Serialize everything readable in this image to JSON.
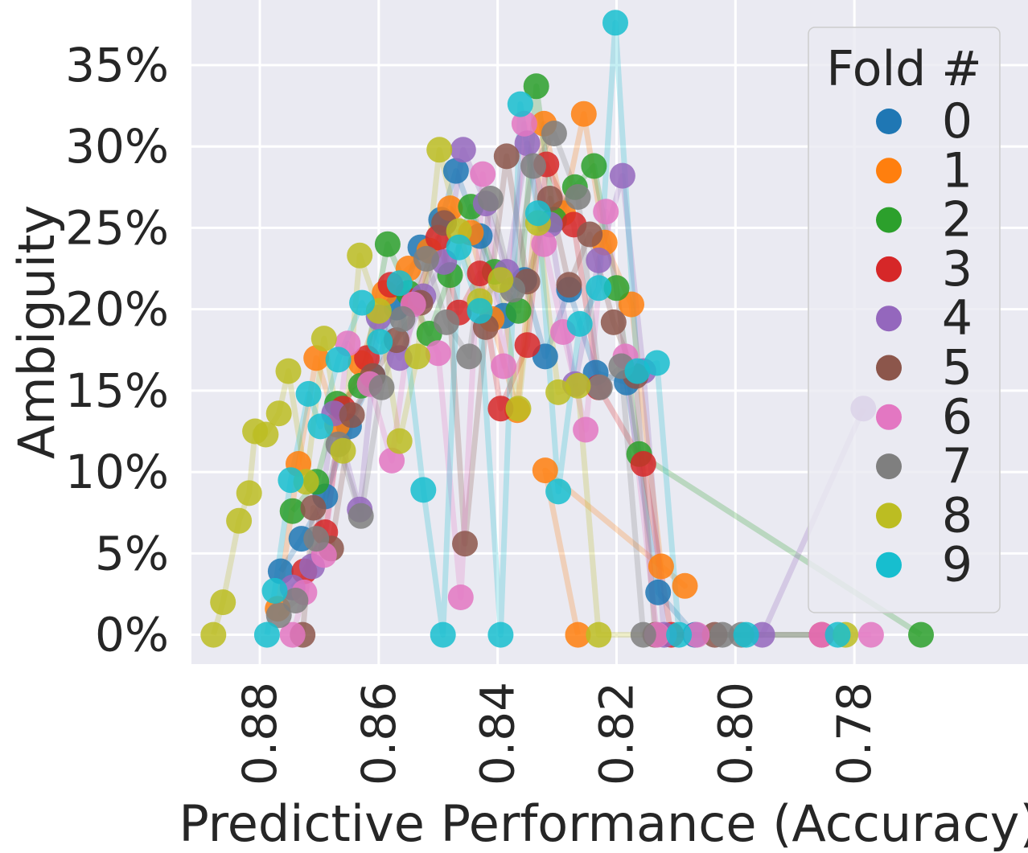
{
  "chart_data": {
    "type": "scatter",
    "title": "",
    "xlabel": "Predictive Performance (Accuracy)",
    "ylabel": "Ambiguity",
    "x_inverted": true,
    "xlim": [
      0.8915,
      0.7508
    ],
    "ylim": [
      -1.8,
      39
    ],
    "xticks": [
      0.88,
      0.86,
      0.84,
      0.82,
      0.8,
      0.78
    ],
    "xtick_labels": [
      "0.88",
      "0.86",
      "0.84",
      "0.82",
      "0.80",
      "0.78"
    ],
    "yticks": [
      0,
      5,
      10,
      15,
      20,
      25,
      30,
      35
    ],
    "ytick_labels": [
      "0%",
      "5%",
      "10%",
      "15%",
      "20%",
      "25%",
      "30%",
      "35%"
    ],
    "grid": true,
    "background": "#eaeaf2",
    "legend": {
      "title": "Fold #",
      "placement": "top-right"
    },
    "series": [
      {
        "name": "0",
        "color": "#1f77b4",
        "points": [
          [
            0.8765,
            3.9
          ],
          [
            0.873,
            5.9
          ],
          [
            0.869,
            8.5
          ],
          [
            0.865,
            12.8
          ],
          [
            0.861,
            15.9
          ],
          [
            0.857,
            20.1
          ],
          [
            0.853,
            23.8
          ],
          [
            0.8495,
            25.5
          ],
          [
            0.847,
            28.5
          ],
          [
            0.843,
            24.5
          ],
          [
            0.839,
            19.6
          ],
          [
            0.8355,
            21.8
          ],
          [
            0.832,
            17.1
          ],
          [
            0.828,
            21.2
          ],
          [
            0.8235,
            16.1
          ],
          [
            0.8183,
            15.5
          ],
          [
            0.813,
            2.6
          ],
          [
            0.8068,
            0
          ]
        ]
      },
      {
        "name": "1",
        "color": "#ff7f0e",
        "points": [
          [
            0.877,
            1.6
          ],
          [
            0.8735,
            10.5
          ],
          [
            0.8705,
            17.0
          ],
          [
            0.867,
            12.9
          ],
          [
            0.863,
            16.7
          ],
          [
            0.859,
            21.0
          ],
          [
            0.855,
            22.5
          ],
          [
            0.8515,
            23.6
          ],
          [
            0.848,
            26.2
          ],
          [
            0.8445,
            24.7
          ],
          [
            0.841,
            19.4
          ],
          [
            0.8367,
            13.8
          ],
          [
            0.8322,
            31.4
          ],
          [
            0.829,
            25.9
          ],
          [
            0.8255,
            32.0
          ],
          [
            0.822,
            24.1
          ],
          [
            0.8175,
            20.3
          ],
          [
            0.8125,
            4.2
          ],
          [
            0.8085,
            3.0
          ],
          [
            0.832,
            10.1
          ],
          [
            0.8265,
            0
          ]
        ]
      },
      {
        "name": "2",
        "color": "#2ca02c",
        "points": [
          [
            0.8745,
            7.6
          ],
          [
            0.8705,
            9.4
          ],
          [
            0.867,
            14.2
          ],
          [
            0.863,
            15.3
          ],
          [
            0.8585,
            24.0
          ],
          [
            0.855,
            21.0
          ],
          [
            0.8515,
            18.5
          ],
          [
            0.848,
            22.1
          ],
          [
            0.8445,
            26.3
          ],
          [
            0.8405,
            22.3
          ],
          [
            0.8365,
            19.9
          ],
          [
            0.8335,
            33.7
          ],
          [
            0.8305,
            25.5
          ],
          [
            0.827,
            27.5
          ],
          [
            0.8238,
            28.8
          ],
          [
            0.82,
            21.3
          ],
          [
            0.8162,
            11.1
          ],
          [
            0.7688,
            0
          ]
        ]
      },
      {
        "name": "3",
        "color": "#d62728",
        "points": [
          [
            0.8725,
            3.9
          ],
          [
            0.869,
            6.3
          ],
          [
            0.866,
            13.9
          ],
          [
            0.862,
            17.0
          ],
          [
            0.858,
            21.5
          ],
          [
            0.854,
            20.5
          ],
          [
            0.85,
            24.4
          ],
          [
            0.8465,
            19.8
          ],
          [
            0.843,
            22.2
          ],
          [
            0.8395,
            13.9
          ],
          [
            0.835,
            17.8
          ],
          [
            0.8318,
            28.9
          ],
          [
            0.8272,
            25.2
          ],
          [
            0.823,
            15.2
          ],
          [
            0.8155,
            10.5
          ],
          [
            0.8108,
            0
          ],
          [
            0.7855,
            0
          ]
        ]
      },
      {
        "name": "4",
        "color": "#9467bd",
        "points": [
          [
            0.8745,
            2.9
          ],
          [
            0.8712,
            4.2
          ],
          [
            0.8675,
            13.6
          ],
          [
            0.8632,
            7.7
          ],
          [
            0.86,
            19.5
          ],
          [
            0.8565,
            17.0
          ],
          [
            0.8525,
            20.8
          ],
          [
            0.849,
            22.9
          ],
          [
            0.8458,
            29.8
          ],
          [
            0.842,
            26.5
          ],
          [
            0.8385,
            22.3
          ],
          [
            0.835,
            30.2
          ],
          [
            0.8312,
            25.2
          ],
          [
            0.827,
            15.4
          ],
          [
            0.823,
            23.0
          ],
          [
            0.819,
            28.2
          ],
          [
            0.8155,
            16.2
          ],
          [
            0.812,
            0
          ],
          [
            0.7955,
            0
          ],
          [
            0.7785,
            13.9
          ]
        ]
      },
      {
        "name": "5",
        "color": "#8c564b",
        "points": [
          [
            0.8728,
            0
          ],
          [
            0.871,
            7.8
          ],
          [
            0.868,
            5.3
          ],
          [
            0.8645,
            13.5
          ],
          [
            0.861,
            15.9
          ],
          [
            0.857,
            18.1
          ],
          [
            0.853,
            20.4
          ],
          [
            0.849,
            25.3
          ],
          [
            0.8455,
            5.6
          ],
          [
            0.842,
            18.9
          ],
          [
            0.8385,
            29.4
          ],
          [
            0.835,
            21.7
          ],
          [
            0.8312,
            26.8
          ],
          [
            0.828,
            21.5
          ],
          [
            0.8245,
            24.6
          ],
          [
            0.8205,
            19.2
          ],
          [
            0.8168,
            15.9
          ],
          [
            0.8135,
            0
          ],
          [
            0.8035,
            0
          ]
        ]
      },
      {
        "name": "6",
        "color": "#e377c2",
        "points": [
          [
            0.8745,
            0
          ],
          [
            0.8725,
            2.6
          ],
          [
            0.8692,
            4.9
          ],
          [
            0.8652,
            17.9
          ],
          [
            0.8615,
            15.4
          ],
          [
            0.8578,
            10.7
          ],
          [
            0.8542,
            20.3
          ],
          [
            0.85,
            17.3
          ],
          [
            0.8462,
            2.3
          ],
          [
            0.8425,
            28.3
          ],
          [
            0.839,
            16.5
          ],
          [
            0.8355,
            31.4
          ],
          [
            0.8322,
            24.0
          ],
          [
            0.829,
            18.6
          ],
          [
            0.8252,
            12.6
          ],
          [
            0.8218,
            26.0
          ],
          [
            0.8185,
            17.1
          ],
          [
            0.8132,
            0
          ],
          [
            0.8065,
            0
          ],
          [
            0.7855,
            0
          ],
          [
            0.7772,
            0
          ]
        ]
      },
      {
        "name": "7",
        "color": "#7f7f7f",
        "points": [
          [
            0.8768,
            1.2
          ],
          [
            0.874,
            2.1
          ],
          [
            0.8705,
            5.9
          ],
          [
            0.8668,
            11.7
          ],
          [
            0.863,
            7.3
          ],
          [
            0.8595,
            15.2
          ],
          [
            0.856,
            19.4
          ],
          [
            0.852,
            23.1
          ],
          [
            0.8486,
            19.2
          ],
          [
            0.8448,
            17.1
          ],
          [
            0.8412,
            26.8
          ],
          [
            0.8375,
            21.2
          ],
          [
            0.834,
            28.8
          ],
          [
            0.8305,
            30.8
          ],
          [
            0.8265,
            26.9
          ],
          [
            0.8228,
            15.2
          ],
          [
            0.8192,
            16.5
          ],
          [
            0.8155,
            0
          ],
          [
            0.8022,
            0
          ],
          [
            0.799,
            0
          ]
        ]
      },
      {
        "name": "8",
        "color": "#bcbd22",
        "points": [
          [
            0.8878,
            0
          ],
          [
            0.8862,
            2.0
          ],
          [
            0.8835,
            7.0
          ],
          [
            0.8818,
            8.7
          ],
          [
            0.8808,
            12.5
          ],
          [
            0.879,
            12.3
          ],
          [
            0.8768,
            13.6
          ],
          [
            0.8752,
            16.2
          ],
          [
            0.8722,
            9.4
          ],
          [
            0.8692,
            18.2
          ],
          [
            0.866,
            11.3
          ],
          [
            0.8632,
            23.3
          ],
          [
            0.86,
            19.9
          ],
          [
            0.8565,
            11.9
          ],
          [
            0.8535,
            17.1
          ],
          [
            0.8498,
            29.8
          ],
          [
            0.8465,
            24.8
          ],
          [
            0.843,
            20.5
          ],
          [
            0.8395,
            21.8
          ],
          [
            0.8365,
            13.9
          ],
          [
            0.8332,
            25.3
          ],
          [
            0.8298,
            14.9
          ],
          [
            0.8265,
            15.3
          ],
          [
            0.823,
            0
          ],
          [
            0.7815,
            0
          ]
        ]
      },
      {
        "name": "9",
        "color": "#17becf",
        "points": [
          [
            0.8788,
            0
          ],
          [
            0.8775,
            2.7
          ],
          [
            0.8748,
            9.5
          ],
          [
            0.8718,
            14.8
          ],
          [
            0.8698,
            12.8
          ],
          [
            0.8668,
            16.9
          ],
          [
            0.8628,
            20.4
          ],
          [
            0.8598,
            18.0
          ],
          [
            0.8565,
            21.6
          ],
          [
            0.8525,
            8.9
          ],
          [
            0.8492,
            0
          ],
          [
            0.8465,
            23.8
          ],
          [
            0.843,
            19.9
          ],
          [
            0.8395,
            0
          ],
          [
            0.8362,
            32.6
          ],
          [
            0.8332,
            25.9
          ],
          [
            0.8298,
            8.8
          ],
          [
            0.8262,
            19.1
          ],
          [
            0.823,
            21.3
          ],
          [
            0.8202,
            37.6
          ],
          [
            0.8165,
            16.2
          ],
          [
            0.8132,
            16.7
          ],
          [
            0.8095,
            0
          ],
          [
            0.7982,
            0
          ],
          [
            0.7828,
            0
          ]
        ]
      }
    ]
  }
}
